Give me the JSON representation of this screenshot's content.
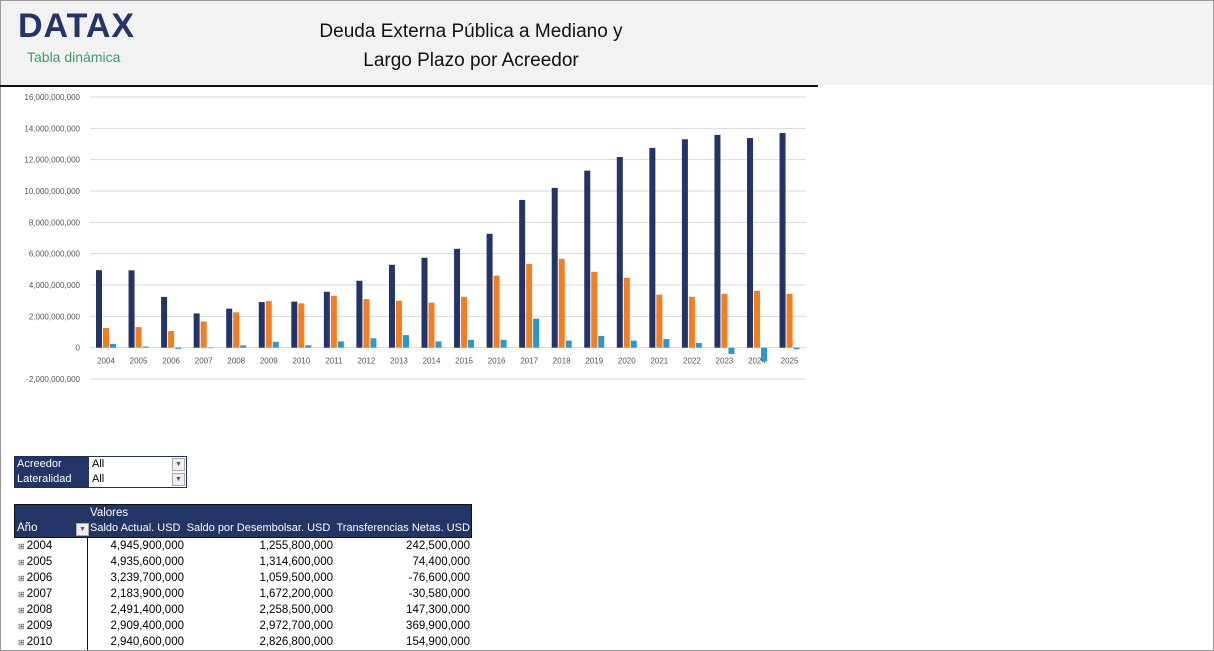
{
  "header": {
    "logo": "DATAX",
    "subtitle": "Tabla dinámica",
    "title_line1": "Deuda Externa Pública a Mediano y",
    "title_line2": "Largo Plazo por Acreedor"
  },
  "filters": [
    {
      "label": "Acreedor",
      "value": "All"
    },
    {
      "label": "Lateralidad",
      "value": "All"
    }
  ],
  "pivot": {
    "values_label": "Valores",
    "row_header": "Año",
    "columns": [
      "Saldo Actual. USD",
      "Saldo por Desembolsar. USD",
      "Transferencias Netas. USD"
    ],
    "rows": [
      [
        "2004",
        "4,945,900,000",
        "1,255,800,000",
        "242,500,000"
      ],
      [
        "2005",
        "4,935,600,000",
        "1,314,600,000",
        "74,400,000"
      ],
      [
        "2006",
        "3,239,700,000",
        "1,059,500,000",
        "-76,600,000"
      ],
      [
        "2007",
        "2,183,900,000",
        "1,672,200,000",
        "-30,580,000"
      ],
      [
        "2008",
        "2,491,400,000",
        "2,258,500,000",
        "147,300,000"
      ],
      [
        "2009",
        "2,909,400,000",
        "2,972,700,000",
        "369,900,000"
      ],
      [
        "2010",
        "2,940,600,000",
        "2,826,800,000",
        "154,900,000"
      ]
    ]
  },
  "chart_data": {
    "type": "bar",
    "ylim": [
      -2000000000,
      16000000000
    ],
    "yticks": [
      "-2,000,000,000",
      "0",
      "2,000,000,000",
      "4,000,000,000",
      "6,000,000,000",
      "8,000,000,000",
      "10,000,000,000",
      "12,000,000,000",
      "14,000,000,000",
      "16,000,000,000"
    ],
    "grid": true,
    "categories": [
      "2004",
      "2005",
      "2006",
      "2007",
      "2008",
      "2009",
      "2010",
      "2011",
      "2012",
      "2013",
      "2014",
      "2015",
      "2016",
      "2017",
      "2018",
      "2019",
      "2020",
      "2021",
      "2022",
      "2023",
      "2024",
      "2025"
    ],
    "series": [
      {
        "color": "#233466",
        "values": [
          4945900000,
          4935600000,
          3239700000,
          2183900000,
          2491400000,
          2909400000,
          2940600000,
          3570000000,
          4270000000,
          5290000000,
          5740000000,
          6310000000,
          7270000000,
          9430000000,
          10200000000,
          11300000000,
          12170000000,
          12750000000,
          13300000000,
          13580000000,
          13380000000,
          13700000000
        ]
      },
      {
        "color": "#f47d20",
        "values": [
          1255800000,
          1314600000,
          1059500000,
          1672200000,
          2258500000,
          2972700000,
          2826800000,
          3310000000,
          3100000000,
          2990000000,
          2870000000,
          3250000000,
          4600000000,
          5350000000,
          5670000000,
          4840000000,
          4460000000,
          3380000000,
          3250000000,
          3440000000,
          3630000000,
          3440000000
        ]
      },
      {
        "color": "#2e95d3",
        "values": [
          242500000,
          74400000,
          -76600000,
          -30580000,
          147300000,
          369900000,
          154900000,
          400000000,
          600000000,
          800000000,
          400000000,
          500000000,
          500000000,
          1850000000,
          450000000,
          750000000,
          450000000,
          550000000,
          300000000,
          -400000000,
          -850000000,
          -100000000
        ]
      }
    ]
  }
}
